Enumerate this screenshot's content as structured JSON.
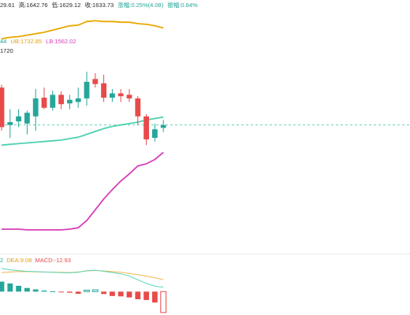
{
  "header": {
    "open_tail": "29.61",
    "high": "高:1642.76",
    "low": "低:1629.12",
    "close": "收:1633.73",
    "change": "涨幅:0.25%(4.08)",
    "amplitude": "振幅:0.84%"
  },
  "boll": {
    "mid_tail": "44",
    "ub": "UB:1732.85",
    "lb": "LB:1562.02"
  },
  "price_marker": "1720",
  "macd": {
    "dif_tail": "2",
    "dea": "DEA:9.08",
    "macd": "MACD:-12.93"
  },
  "colors": {
    "up": "#26a69a",
    "down": "#e84a4a",
    "ub_line": "#e8a800",
    "mid_line": "#4fd1b0",
    "lb_line": "#d63fb8",
    "dea_line": "#f0b84a",
    "dif_line": "#5bd6c0"
  },
  "chart_data": {
    "type": "candlestick",
    "candles": [
      {
        "o": 1720,
        "h": 1724,
        "l": 1660,
        "c": 1665
      },
      {
        "o": 1668,
        "h": 1690,
        "l": 1650,
        "c": 1672
      },
      {
        "o": 1673,
        "h": 1690,
        "l": 1665,
        "c": 1680
      },
      {
        "o": 1670,
        "h": 1688,
        "l": 1655,
        "c": 1685
      },
      {
        "o": 1680,
        "h": 1718,
        "l": 1660,
        "c": 1705
      },
      {
        "o": 1706,
        "h": 1720,
        "l": 1690,
        "c": 1692
      },
      {
        "o": 1692,
        "h": 1716,
        "l": 1688,
        "c": 1710
      },
      {
        "o": 1710,
        "h": 1715,
        "l": 1690,
        "c": 1697
      },
      {
        "o": 1698,
        "h": 1710,
        "l": 1690,
        "c": 1703
      },
      {
        "o": 1700,
        "h": 1720,
        "l": 1692,
        "c": 1705
      },
      {
        "o": 1705,
        "h": 1742,
        "l": 1695,
        "c": 1728
      },
      {
        "o": 1732,
        "h": 1740,
        "l": 1720,
        "c": 1725
      },
      {
        "o": 1726,
        "h": 1738,
        "l": 1700,
        "c": 1706
      },
      {
        "o": 1706,
        "h": 1718,
        "l": 1700,
        "c": 1712
      },
      {
        "o": 1712,
        "h": 1718,
        "l": 1700,
        "c": 1708
      },
      {
        "o": 1710,
        "h": 1718,
        "l": 1700,
        "c": 1705
      },
      {
        "o": 1705,
        "h": 1708,
        "l": 1668,
        "c": 1680
      },
      {
        "o": 1680,
        "h": 1683,
        "l": 1640,
        "c": 1648
      },
      {
        "o": 1650,
        "h": 1670,
        "l": 1645,
        "c": 1662
      },
      {
        "o": 1664,
        "h": 1675,
        "l": 1658,
        "c": 1668
      }
    ],
    "ub": [
      1788,
      1790,
      1791,
      1793,
      1795,
      1797,
      1800,
      1803,
      1806,
      1807,
      1812,
      1813,
      1812,
      1812,
      1811,
      1811,
      1809,
      1808,
      1806,
      1803
    ],
    "mid": [
      1640,
      1641,
      1642,
      1643,
      1644,
      1645,
      1646,
      1647,
      1649,
      1651,
      1655,
      1659,
      1663,
      1666,
      1668,
      1670,
      1672,
      1675,
      1677,
      1679
    ],
    "lb": [
      1523,
      1523,
      1523,
      1522,
      1522,
      1522,
      1522,
      1522,
      1523,
      1525,
      1535,
      1550,
      1565,
      1578,
      1590,
      1600,
      1611,
      1614,
      1620,
      1630
    ],
    "macd_hist": [
      5.5,
      4.5,
      3.2,
      2.0,
      1.2,
      0.6,
      0.2,
      -0.3,
      -0.6,
      -1.2,
      0.8,
      1.0,
      -1.3,
      -2.4,
      -2.6,
      -3.2,
      -4.2,
      -4.6,
      -6.0,
      -11.5
    ],
    "dif": [
      12.8,
      12.0,
      11.5,
      11.2,
      11.0,
      10.8,
      10.6,
      10.4,
      10.3,
      10.6,
      11.5,
      11.8,
      11.2,
      10.5,
      9.8,
      8.6,
      6.5,
      4.5,
      3.0,
      2.4
    ],
    "dea": [
      10.5,
      10.8,
      11.0,
      11.0,
      10.9,
      10.8,
      10.7,
      10.6,
      10.5,
      10.8,
      11.4,
      11.6,
      11.4,
      11.0,
      10.6,
      10.0,
      9.3,
      8.6,
      7.6,
      6.6
    ]
  }
}
